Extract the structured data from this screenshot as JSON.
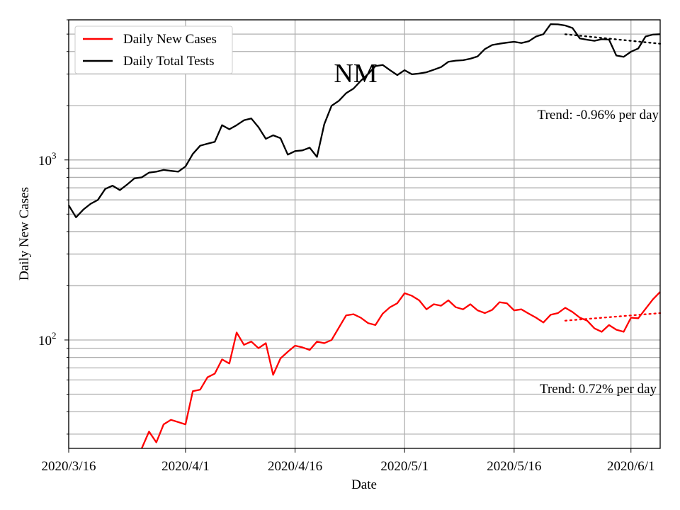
{
  "chart_data": {
    "type": "line",
    "title": "NM",
    "xlabel": "Date",
    "ylabel": "Daily New Cases",
    "yscale": "log",
    "ylim": [
      25,
      6000
    ],
    "xlim": [
      "2020-03-16",
      "2020-06-05"
    ],
    "x_ticks": [
      "2020/3/16",
      "2020/4/1",
      "2020/4/16",
      "2020/5/1",
      "2020/5/16",
      "2020/6/1"
    ],
    "y_ticks": [
      {
        "base": "10",
        "exp": "2",
        "value": 100
      },
      {
        "base": "10",
        "exp": "3",
        "value": 1000
      }
    ],
    "grid": true,
    "legend_position": "upper-left",
    "colors": {
      "cases": "#ff0000",
      "tests": "#000000"
    },
    "series": [
      {
        "name": "Daily New Cases",
        "color": "#ff0000",
        "x": [
          "2020-03-26",
          "2020-03-27",
          "2020-03-28",
          "2020-03-29",
          "2020-03-30",
          "2020-03-31",
          "2020-04-01",
          "2020-04-02",
          "2020-04-03",
          "2020-04-04",
          "2020-04-05",
          "2020-04-06",
          "2020-04-07",
          "2020-04-08",
          "2020-04-09",
          "2020-04-10",
          "2020-04-11",
          "2020-04-12",
          "2020-04-13",
          "2020-04-14",
          "2020-04-15",
          "2020-04-16",
          "2020-04-17",
          "2020-04-18",
          "2020-04-19",
          "2020-04-20",
          "2020-04-21",
          "2020-04-22",
          "2020-04-23",
          "2020-04-24",
          "2020-04-25",
          "2020-04-26",
          "2020-04-27",
          "2020-04-28",
          "2020-04-29",
          "2020-04-30",
          "2020-05-01",
          "2020-05-02",
          "2020-05-03",
          "2020-05-04",
          "2020-05-05",
          "2020-05-06",
          "2020-05-07",
          "2020-05-08",
          "2020-05-09",
          "2020-05-10",
          "2020-05-11",
          "2020-05-12",
          "2020-05-13",
          "2020-05-14",
          "2020-05-15",
          "2020-05-16",
          "2020-05-17",
          "2020-05-18",
          "2020-05-19",
          "2020-05-20",
          "2020-05-21",
          "2020-05-22",
          "2020-05-23",
          "2020-05-24",
          "2020-05-25",
          "2020-05-26",
          "2020-05-27",
          "2020-05-28",
          "2020-05-29",
          "2020-05-30",
          "2020-05-31",
          "2020-06-01",
          "2020-06-02",
          "2020-06-03",
          "2020-06-04",
          "2020-06-05"
        ],
        "y": [
          25,
          31,
          27,
          34,
          36,
          35,
          34,
          52,
          53,
          62,
          65,
          78,
          74,
          110,
          94,
          98,
          90,
          96,
          64,
          79,
          86,
          93,
          91,
          88,
          98,
          96,
          100,
          117,
          137,
          139,
          133,
          124,
          121,
          140,
          152,
          160,
          182,
          176,
          166,
          148,
          158,
          155,
          166,
          152,
          148,
          158,
          146,
          141,
          147,
          162,
          160,
          146,
          148,
          140,
          133,
          125,
          138,
          141,
          151,
          143,
          133,
          128,
          116,
          111,
          121,
          114,
          111,
          133,
          132,
          149,
          168,
          185
        ]
      },
      {
        "name": "Daily Total Tests",
        "color": "#000000",
        "x": [
          "2020-03-16",
          "2020-03-17",
          "2020-03-18",
          "2020-03-19",
          "2020-03-20",
          "2020-03-21",
          "2020-03-22",
          "2020-03-23",
          "2020-03-24",
          "2020-03-25",
          "2020-03-26",
          "2020-03-27",
          "2020-03-28",
          "2020-03-29",
          "2020-03-30",
          "2020-03-31",
          "2020-04-01",
          "2020-04-02",
          "2020-04-03",
          "2020-04-04",
          "2020-04-05",
          "2020-04-06",
          "2020-04-07",
          "2020-04-08",
          "2020-04-09",
          "2020-04-10",
          "2020-04-11",
          "2020-04-12",
          "2020-04-13",
          "2020-04-14",
          "2020-04-15",
          "2020-04-16",
          "2020-04-17",
          "2020-04-18",
          "2020-04-19",
          "2020-04-20",
          "2020-04-21",
          "2020-04-22",
          "2020-04-23",
          "2020-04-24",
          "2020-04-25",
          "2020-04-26",
          "2020-04-27",
          "2020-04-28",
          "2020-04-29",
          "2020-04-30",
          "2020-05-01",
          "2020-05-02",
          "2020-05-03",
          "2020-05-04",
          "2020-05-05",
          "2020-05-06",
          "2020-05-07",
          "2020-05-08",
          "2020-05-09",
          "2020-05-10",
          "2020-05-11",
          "2020-05-12",
          "2020-05-13",
          "2020-05-14",
          "2020-05-15",
          "2020-05-16",
          "2020-05-17",
          "2020-05-18",
          "2020-05-19",
          "2020-05-20",
          "2020-05-21",
          "2020-05-22",
          "2020-05-23",
          "2020-05-24",
          "2020-05-25",
          "2020-05-26",
          "2020-05-27",
          "2020-05-28",
          "2020-05-29",
          "2020-05-30",
          "2020-05-31",
          "2020-06-01",
          "2020-06-02",
          "2020-06-03",
          "2020-06-04",
          "2020-06-05"
        ],
        "y": [
          560,
          480,
          530,
          570,
          600,
          690,
          720,
          680,
          730,
          790,
          800,
          850,
          860,
          880,
          870,
          860,
          920,
          1080,
          1200,
          1230,
          1260,
          1560,
          1480,
          1560,
          1660,
          1700,
          1520,
          1310,
          1370,
          1320,
          1070,
          1120,
          1130,
          1170,
          1040,
          1580,
          2000,
          2130,
          2350,
          2490,
          2750,
          3000,
          3320,
          3370,
          3150,
          2960,
          3150,
          2990,
          3020,
          3070,
          3170,
          3280,
          3510,
          3560,
          3580,
          3650,
          3760,
          4130,
          4350,
          4420,
          4480,
          4530,
          4460,
          4560,
          4850,
          4990,
          5680,
          5660,
          5580,
          5400,
          4730,
          4650,
          4590,
          4680,
          4660,
          3800,
          3740,
          3990,
          4160,
          4850,
          4970,
          4990
        ]
      }
    ],
    "trends": [
      {
        "label": "Trend: -0.96% per day",
        "series": "Daily Total Tests",
        "x": [
          "2020-05-23",
          "2020-06-05"
        ],
        "y": [
          4990,
          4420
        ]
      },
      {
        "label": "Trend: 0.72% per day",
        "series": "Daily New Cases",
        "x": [
          "2020-05-23",
          "2020-06-05"
        ],
        "y": [
          128,
          141
        ]
      }
    ]
  }
}
